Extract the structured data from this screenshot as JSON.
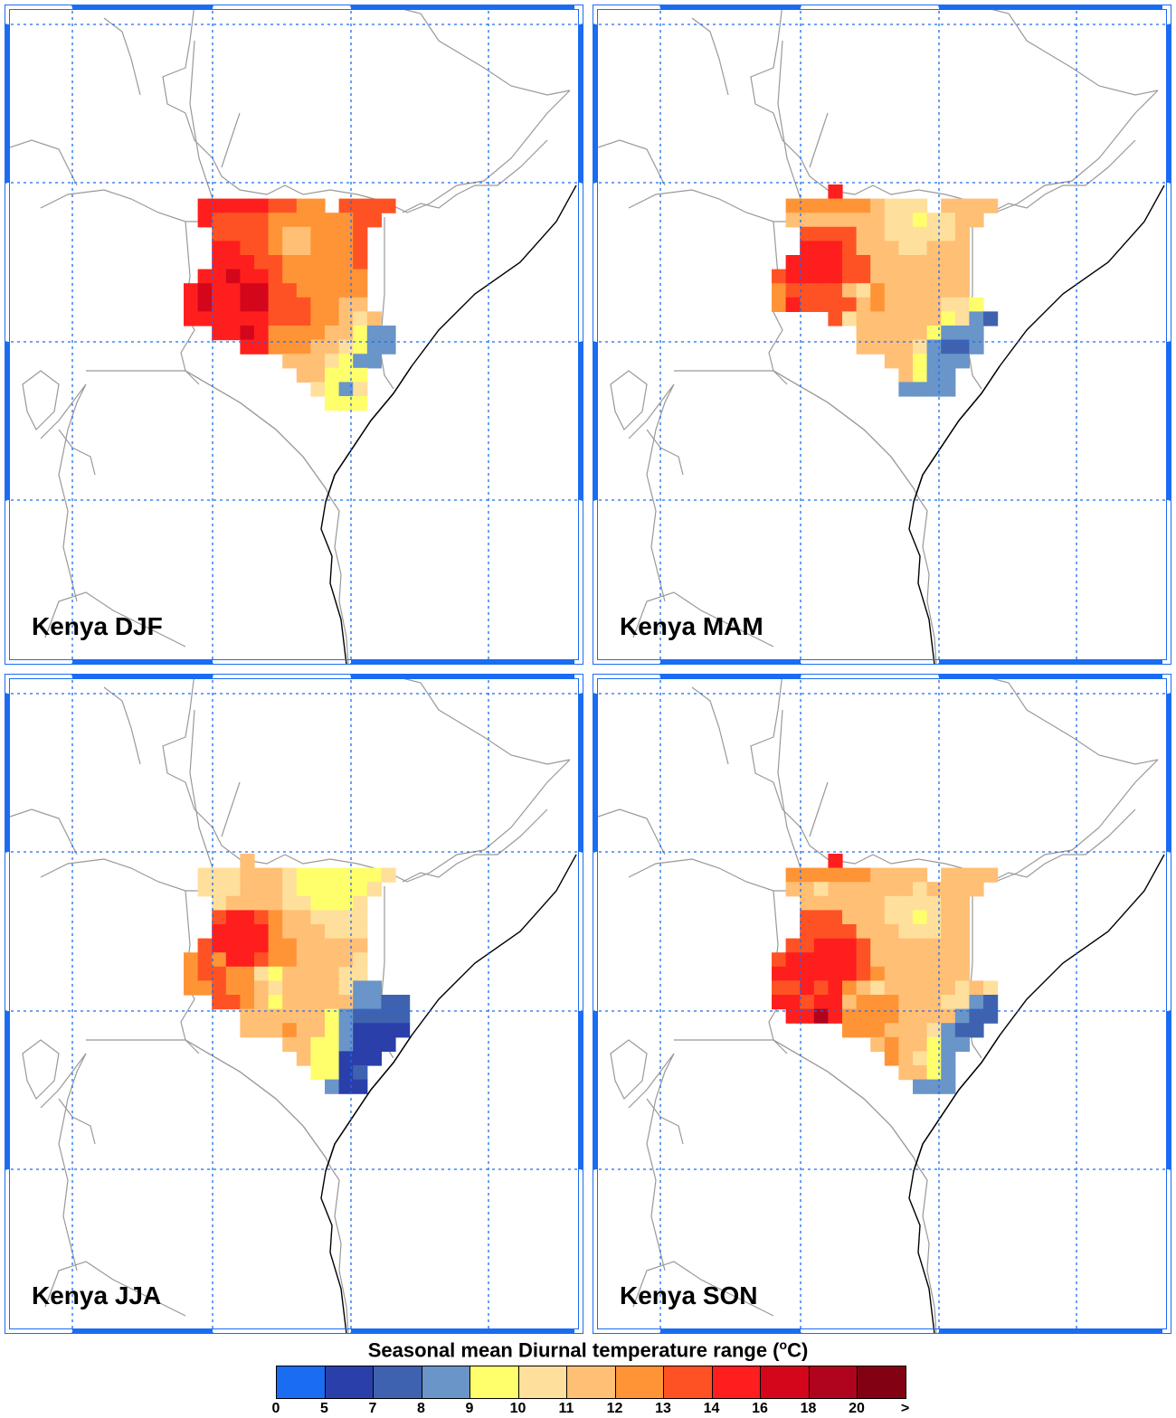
{
  "panels": [
    {
      "label": "Kenya DJF",
      "key": "DJF"
    },
    {
      "label": "Kenya MAM",
      "key": "MAM"
    },
    {
      "label": "Kenya JJA",
      "key": "JJA"
    },
    {
      "label": "Kenya SON",
      "key": "SON"
    }
  ],
  "colorbar": {
    "title": "Seasonal mean Diurnal temperature range (",
    "title_unit_sup": "o",
    "title_end": "C)",
    "labels": [
      "0",
      "5",
      "7",
      "8",
      "9",
      "10",
      "11",
      "12",
      "13",
      "14",
      "16",
      "18",
      "20",
      ">"
    ],
    "colors": [
      "#1a6cf2",
      "#2a3faa",
      "#3f62b0",
      "#6a95c9",
      "#ffff6b",
      "#ffdf9c",
      "#ffbf75",
      "#ff9436",
      "#ff5224",
      "#ff1e1e",
      "#d4061c",
      "#b0041e",
      "#820214"
    ]
  },
  "colors": {
    "frame": "#1a6cf2",
    "grid": "#1a6cf2",
    "border": "#999999",
    "coast": "#000000"
  }
}
